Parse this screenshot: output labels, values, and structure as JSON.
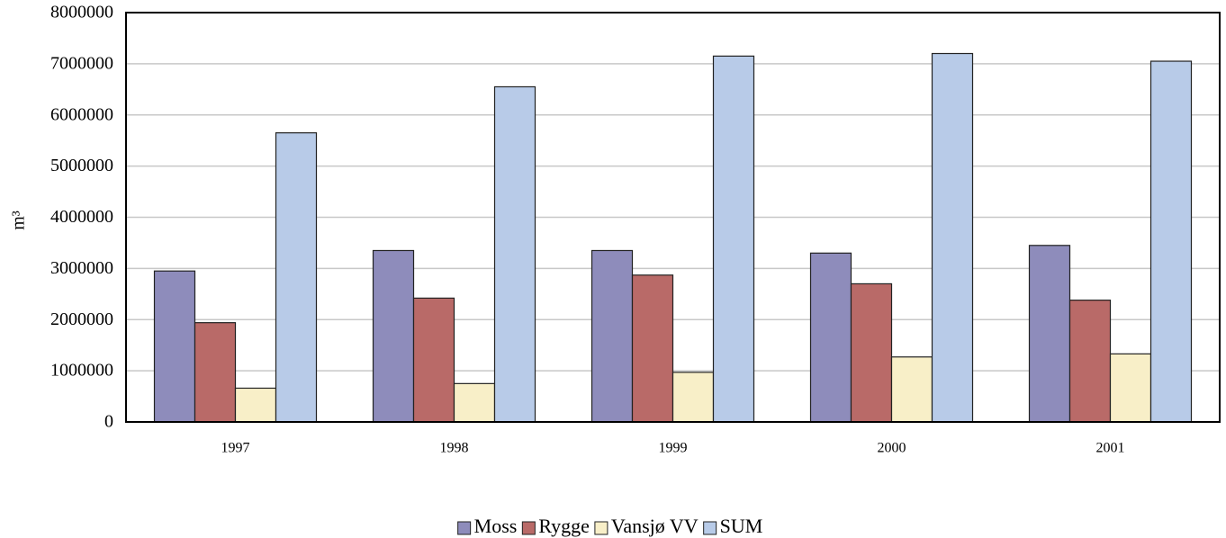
{
  "chart_data": {
    "type": "bar",
    "y_label": "m³",
    "categories": [
      "1997",
      "1998",
      "1999",
      "2000",
      "2001"
    ],
    "series": [
      {
        "name": "Moss",
        "color": "#8e8cbb",
        "values": [
          2950000,
          3350000,
          3350000,
          3300000,
          3450000
        ]
      },
      {
        "name": "Rygge",
        "color": "#b96a68",
        "values": [
          1940000,
          2420000,
          2870000,
          2700000,
          2380000
        ]
      },
      {
        "name": "Vansjø VV",
        "color": "#f8efc8",
        "values": [
          660000,
          750000,
          970000,
          1270000,
          1330000
        ]
      },
      {
        "name": "SUM",
        "color": "#b8cbe8",
        "values": [
          5650000,
          6550000,
          7150000,
          7200000,
          7050000
        ]
      }
    ],
    "ylim": [
      0,
      8000000
    ],
    "yticks": [
      0,
      1000000,
      2000000,
      3000000,
      4000000,
      5000000,
      6000000,
      7000000,
      8000000
    ],
    "grid": true,
    "legend": "bottom"
  }
}
